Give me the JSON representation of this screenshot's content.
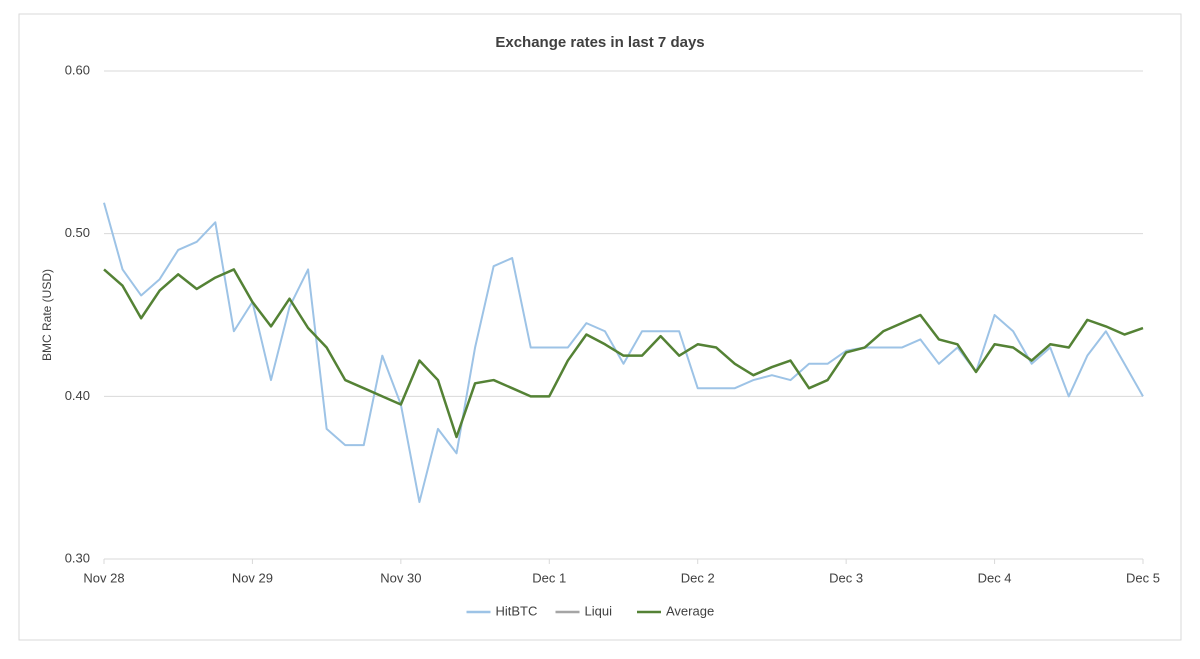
{
  "chart_data": {
    "type": "line",
    "title": "Exchange rates in last 7 days",
    "ylabel": "BMC Rate (USD)",
    "x": [
      0,
      0.125,
      0.25,
      0.375,
      0.5,
      0.625,
      0.75,
      0.875,
      1,
      1.125,
      1.25,
      1.375,
      1.5,
      1.625,
      1.75,
      1.875,
      2,
      2.125,
      2.25,
      2.375,
      2.5,
      2.625,
      2.75,
      2.875,
      3,
      3.125,
      3.25,
      3.375,
      3.5,
      3.625,
      3.75,
      3.875,
      4,
      4.125,
      4.25,
      4.375,
      4.5,
      4.625,
      4.75,
      4.875,
      5,
      5.125,
      5.25,
      5.375,
      5.5,
      5.625,
      5.75,
      5.875,
      6,
      6.125,
      6.25,
      6.375,
      6.5,
      6.625,
      6.75,
      6.875,
      7
    ],
    "series": [
      {
        "name": "HitBTC",
        "color": "#9dc3e6",
        "values": [
          0.519,
          0.478,
          0.462,
          0.472,
          0.49,
          0.495,
          0.507,
          0.44,
          0.458,
          0.41,
          0.455,
          0.478,
          0.38,
          0.37,
          0.37,
          0.425,
          0.395,
          0.335,
          0.38,
          0.365,
          0.43,
          0.48,
          0.485,
          0.43,
          0.43,
          0.43,
          0.445,
          0.44,
          0.42,
          0.44,
          0.44,
          0.44,
          0.405,
          0.405,
          0.405,
          0.41,
          0.413,
          0.41,
          0.42,
          0.42,
          0.428,
          0.43,
          0.43,
          0.43,
          0.435,
          0.42,
          0.43,
          0.415,
          0.45,
          0.44,
          0.42,
          0.43,
          0.4,
          0.425,
          0.44,
          0.42,
          0.4
        ]
      },
      {
        "name": "Liqui",
        "color": "#a5a5a5",
        "values": [
          null,
          null,
          null,
          null,
          null,
          null,
          null,
          null,
          null,
          null,
          null,
          null,
          null,
          null,
          null,
          null,
          null,
          null,
          null,
          null,
          null,
          null,
          null,
          null,
          null,
          null,
          null,
          null,
          null,
          null,
          null,
          null,
          null,
          null,
          null,
          null,
          null,
          null,
          null,
          null,
          null,
          null,
          null,
          null,
          null,
          null,
          null,
          null,
          null,
          null,
          null,
          null,
          null,
          null,
          null,
          null,
          null
        ]
      },
      {
        "name": "Average",
        "color": "#548235",
        "values": [
          0.478,
          0.468,
          0.448,
          0.465,
          0.475,
          0.466,
          0.473,
          0.478,
          0.458,
          0.443,
          0.46,
          0.442,
          0.43,
          0.41,
          0.405,
          0.4,
          0.395,
          0.422,
          0.41,
          0.375,
          0.408,
          0.41,
          0.405,
          0.4,
          0.4,
          0.422,
          0.438,
          0.432,
          0.425,
          0.425,
          0.437,
          0.425,
          0.432,
          0.43,
          0.42,
          0.413,
          0.418,
          0.422,
          0.405,
          0.41,
          0.427,
          0.43,
          0.44,
          0.445,
          0.45,
          0.435,
          0.432,
          0.415,
          0.432,
          0.43,
          0.422,
          0.432,
          0.43,
          0.447,
          0.443,
          0.438,
          0.442
        ]
      }
    ],
    "xlim": [
      0,
      7
    ],
    "xticks": [
      {
        "value": 0,
        "label": "Nov 28"
      },
      {
        "value": 1,
        "label": "Nov 29"
      },
      {
        "value": 2,
        "label": "Nov 30"
      },
      {
        "value": 3,
        "label": "Dec 1"
      },
      {
        "value": 4,
        "label": "Dec 2"
      },
      {
        "value": 5,
        "label": "Dec 3"
      },
      {
        "value": 6,
        "label": "Dec 4"
      },
      {
        "value": 7,
        "label": "Dec 5"
      }
    ],
    "ylim": [
      0.3,
      0.6
    ],
    "yticks": [
      {
        "value": 0.3,
        "label": "0.30"
      },
      {
        "value": 0.4,
        "label": "0.40"
      },
      {
        "value": 0.5,
        "label": "0.50"
      },
      {
        "value": 0.6,
        "label": "0.60"
      }
    ],
    "grid": true,
    "legend": "bottom"
  }
}
